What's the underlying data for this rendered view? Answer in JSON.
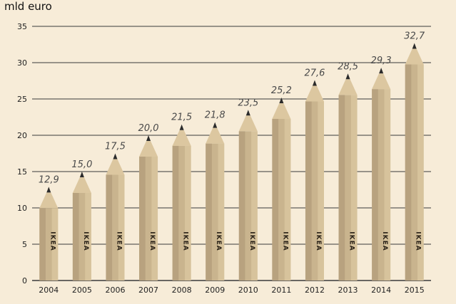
{
  "chart_data": {
    "type": "bar",
    "unit_label": "mld euro",
    "categories": [
      "2004",
      "2005",
      "2006",
      "2007",
      "2008",
      "2009",
      "2010",
      "2011",
      "2012",
      "2013",
      "2014",
      "2015"
    ],
    "values": [
      12.9,
      15.0,
      17.5,
      20.0,
      21.5,
      21.8,
      23.5,
      25.2,
      27.6,
      28.5,
      29.3,
      32.7
    ],
    "value_labels": [
      "12,9",
      "15,0",
      "17,5",
      "20,0",
      "21,5",
      "21,8",
      "23,5",
      "25,2",
      "27,6",
      "28,5",
      "29,3",
      "32,7"
    ],
    "bar_brand_text": "IKEA",
    "ylim": [
      0,
      35
    ],
    "yticks": [
      0,
      5,
      10,
      15,
      20,
      25,
      30,
      35
    ],
    "grid": true,
    "legend": "none",
    "colors": {
      "background": "#f7ecd8",
      "pencil_body": "#c9b48e",
      "pencil_shade": "#a99372",
      "pencil_tip": "#dcc7a0",
      "pencil_lead": "#2b2b2b",
      "gridline": "#3a3a3a"
    }
  }
}
